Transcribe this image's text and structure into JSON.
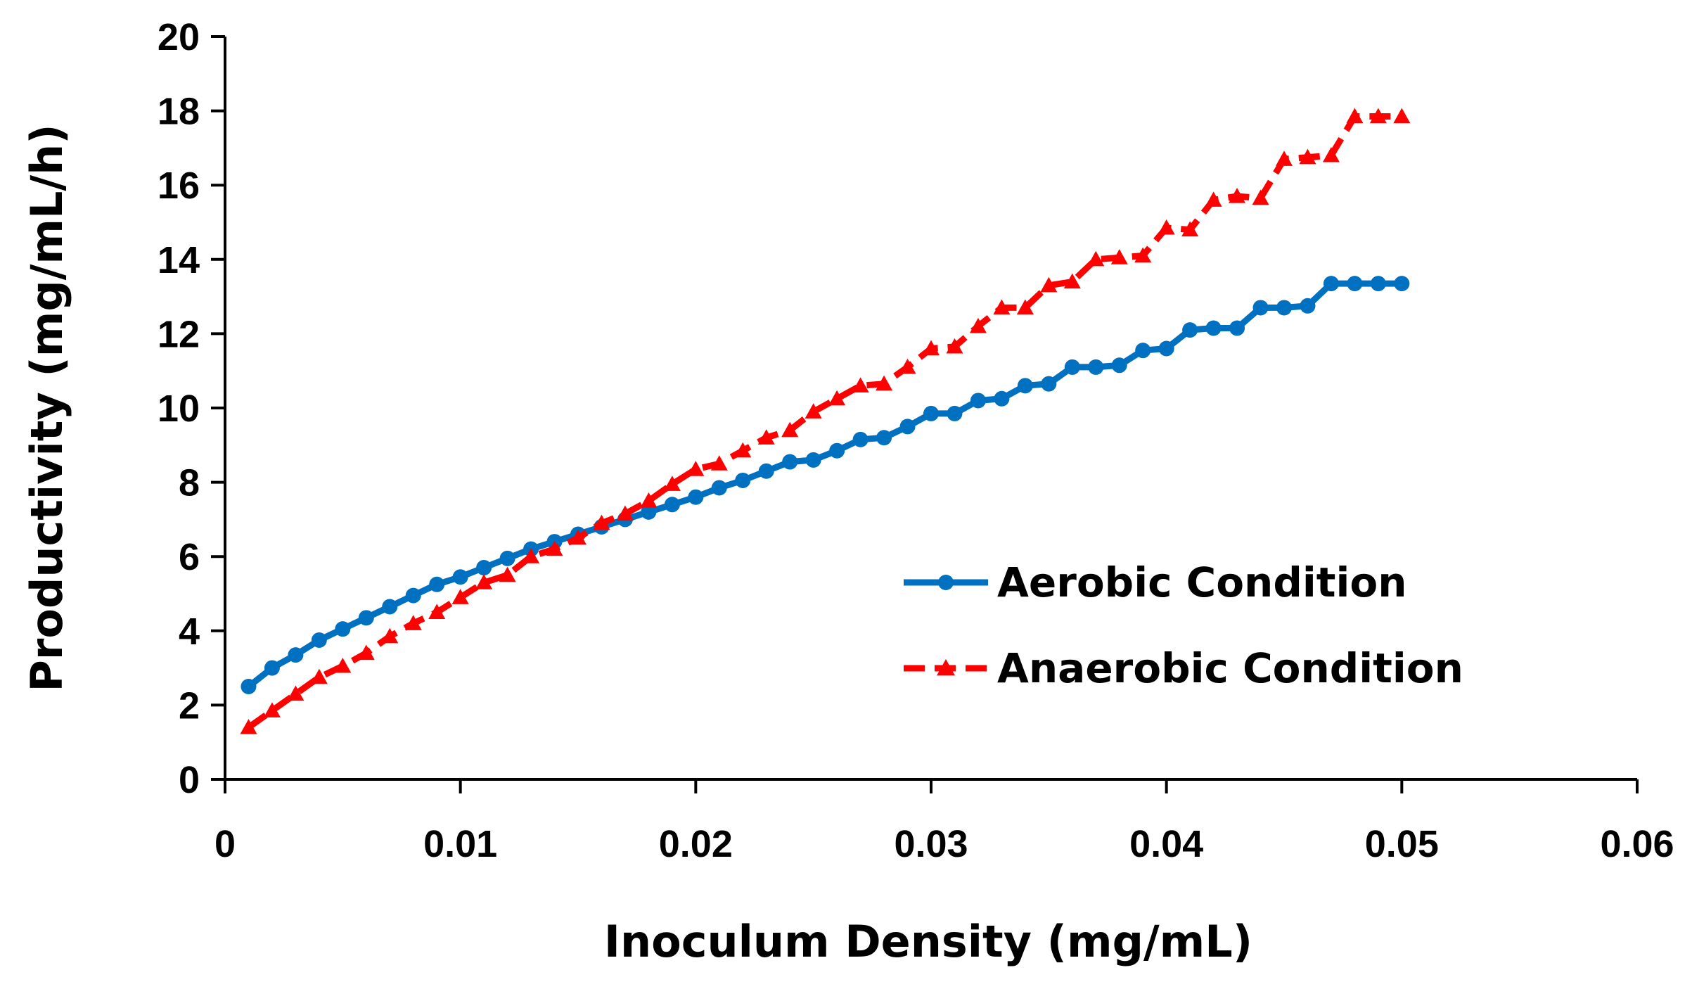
{
  "chart_data": {
    "type": "line",
    "title": "",
    "xlabel": "Inoculum Density (mg/mL)",
    "ylabel": "Productivity (mg/mL/h)",
    "xlim": [
      0,
      0.06
    ],
    "ylim": [
      0,
      20
    ],
    "x_ticks": [
      "0",
      "0.01",
      "0.02",
      "0.03",
      "0.04",
      "0.05",
      "0.06"
    ],
    "y_ticks": [
      "0",
      "2",
      "4",
      "6",
      "8",
      "10",
      "12",
      "14",
      "16",
      "18",
      "20"
    ],
    "x_tick_values": [
      0,
      0.01,
      0.02,
      0.03,
      0.04,
      0.05,
      0.06
    ],
    "y_tick_values": [
      0,
      2,
      4,
      6,
      8,
      10,
      12,
      14,
      16,
      18,
      20
    ],
    "grid": false,
    "legend_position": "center-right",
    "x": [
      0.001,
      0.002,
      0.003,
      0.004,
      0.005,
      0.006,
      0.007,
      0.008,
      0.009,
      0.01,
      0.011,
      0.012,
      0.013,
      0.014,
      0.015,
      0.016,
      0.017,
      0.018,
      0.019,
      0.02,
      0.021,
      0.022,
      0.023,
      0.024,
      0.025,
      0.026,
      0.027,
      0.028,
      0.029,
      0.03,
      0.031,
      0.032,
      0.033,
      0.034,
      0.035,
      0.036,
      0.037,
      0.038,
      0.039,
      0.04,
      0.041,
      0.042,
      0.043,
      0.044,
      0.045,
      0.046,
      0.047,
      0.048,
      0.049,
      0.05
    ],
    "series": [
      {
        "name": "Aerobic Condition",
        "color": "#0070C0",
        "marker": "circle",
        "line_style": "solid",
        "values": [
          2.5,
          3.0,
          3.35,
          3.75,
          4.05,
          4.35,
          4.65,
          4.95,
          5.25,
          5.45,
          5.7,
          5.95,
          6.2,
          6.4,
          6.6,
          6.8,
          7.0,
          7.2,
          7.4,
          7.6,
          7.85,
          8.05,
          8.3,
          8.55,
          8.6,
          8.85,
          9.15,
          9.2,
          9.5,
          9.85,
          9.85,
          10.2,
          10.25,
          10.6,
          10.65,
          11.1,
          11.1,
          11.15,
          11.55,
          11.6,
          12.1,
          12.15,
          12.15,
          12.7,
          12.7,
          12.75,
          13.35,
          13.35,
          13.35,
          13.35
        ]
      },
      {
        "name": "Anaerobic Condition",
        "color": "#FF0000",
        "marker": "triangle",
        "line_style": "dashed",
        "values": [
          1.4,
          1.85,
          2.3,
          2.75,
          3.05,
          3.4,
          3.85,
          4.2,
          4.5,
          4.9,
          5.3,
          5.5,
          6.0,
          6.2,
          6.5,
          6.9,
          7.15,
          7.5,
          7.95,
          8.35,
          8.5,
          8.85,
          9.2,
          9.4,
          9.9,
          10.25,
          10.6,
          10.65,
          11.1,
          11.6,
          11.65,
          12.2,
          12.7,
          12.7,
          13.3,
          13.4,
          14.0,
          14.05,
          14.1,
          14.85,
          14.8,
          15.6,
          15.7,
          15.65,
          16.7,
          16.75,
          16.8,
          17.85,
          17.85,
          17.85
        ]
      }
    ]
  }
}
